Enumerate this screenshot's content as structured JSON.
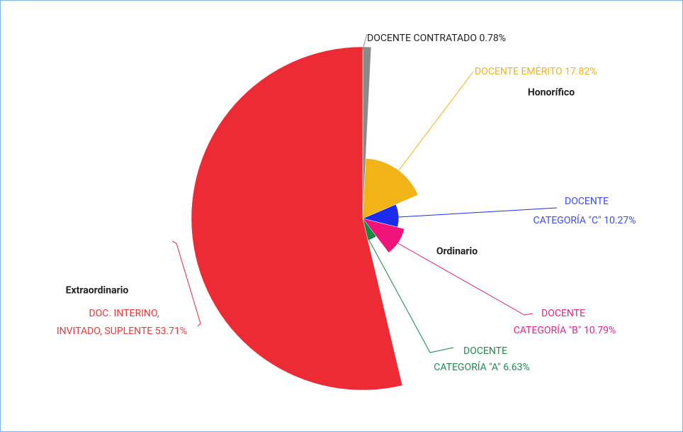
{
  "chart_data": {
    "type": "pie",
    "label_lines": [
      [
        "DOCENTE CONTRATADO"
      ],
      [
        "DOCENTE EMÉRITO"
      ],
      [
        "DOCENTE",
        "CATEGORÍA \"C\""
      ],
      [
        "DOCENTE",
        "CATEGORÍA \"B\""
      ],
      [
        "DOCENTE",
        "CATEGORÍA \"A\""
      ],
      [
        "DOC. INTERINO,",
        "INVITADO, SUPLENTE"
      ]
    ],
    "values": [
      0.78,
      17.82,
      10.27,
      10.79,
      6.63,
      53.71
    ],
    "value_labels": [
      "0.78%",
      "17.82%",
      "10.27%",
      "10.79%",
      "6.63%",
      "53.71%"
    ],
    "radii": [
      100,
      35,
      21,
      25,
      13,
      100
    ],
    "colors": [
      "#8a8a8a",
      "#f2b316",
      "#1a2cf0",
      "#f0137a",
      "#128a46",
      "#ec2b34"
    ],
    "groups": [
      "Honorífico",
      "Ordinario",
      "Extraordinario"
    ]
  }
}
